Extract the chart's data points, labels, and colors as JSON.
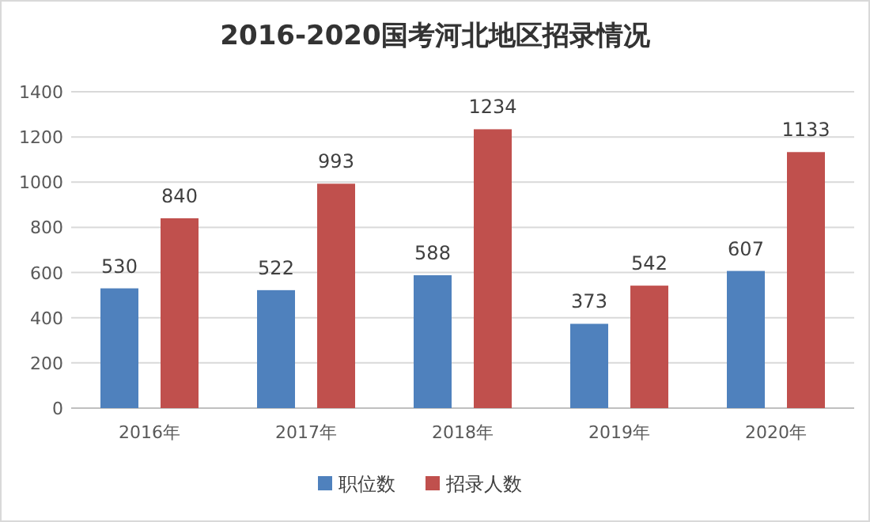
{
  "chart_data": {
    "type": "bar",
    "title": "2016-2020国考河北地区招录情况",
    "categories": [
      "2016年",
      "2017年",
      "2018年",
      "2019年",
      "2020年"
    ],
    "series": [
      {
        "name": "职位数",
        "color": "#4f81bd",
        "values": [
          530,
          522,
          588,
          373,
          607
        ]
      },
      {
        "name": "招录人数",
        "color": "#c0504d",
        "values": [
          840,
          993,
          1234,
          542,
          1133
        ]
      }
    ],
    "ylim": [
      0,
      1400
    ],
    "yticks": [
      0,
      200,
      400,
      600,
      800,
      1000,
      1200,
      1400
    ],
    "grid": "y",
    "legend": "bottom",
    "data_labels": true
  }
}
